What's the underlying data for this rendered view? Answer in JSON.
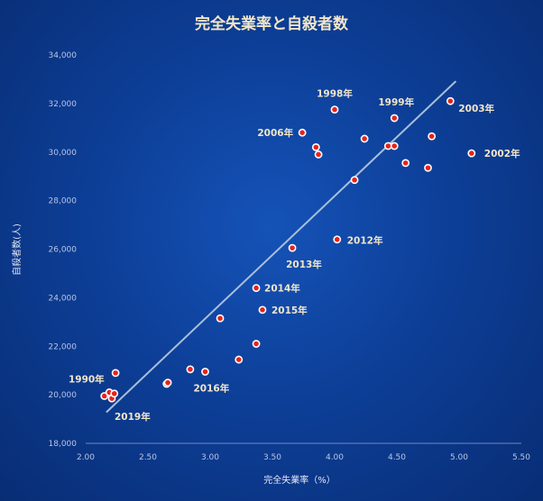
{
  "chart_data": {
    "type": "scatter",
    "title": "完全失業率と自殺者数",
    "xlabel": "完全失業率（%）",
    "ylabel": "自殺者数(人)",
    "xlim": [
      2.0,
      5.5
    ],
    "ylim": [
      18000,
      34000
    ],
    "x_ticks": [
      "2.00",
      "2.50",
      "3.00",
      "3.50",
      "4.00",
      "4.50",
      "5.00",
      "5.50"
    ],
    "y_ticks": [
      "18,000",
      "20,000",
      "22,000",
      "24,000",
      "26,000",
      "28,000",
      "30,000",
      "32,000",
      "34,000"
    ],
    "grid": false,
    "marker_color": "#e8231c",
    "trendline_color": "#a9bfd9",
    "trendline": {
      "x": [
        2.17,
        4.97
      ],
      "y": [
        19300,
        32900
      ]
    },
    "points": [
      {
        "x": 2.15,
        "y": 19950
      },
      {
        "x": 2.19,
        "y": 20100
      },
      {
        "x": 2.21,
        "y": 19850
      },
      {
        "x": 2.23,
        "y": 20050
      },
      {
        "x": 2.24,
        "y": 20900
      },
      {
        "x": 2.65,
        "y": 20450
      },
      {
        "x": 2.66,
        "y": 20500
      },
      {
        "x": 2.84,
        "y": 21050
      },
      {
        "x": 2.96,
        "y": 20950
      },
      {
        "x": 3.08,
        "y": 23150
      },
      {
        "x": 3.23,
        "y": 21450
      },
      {
        "x": 3.37,
        "y": 22100
      },
      {
        "x": 3.37,
        "y": 24400
      },
      {
        "x": 3.42,
        "y": 23500
      },
      {
        "x": 3.66,
        "y": 26050
      },
      {
        "x": 3.74,
        "y": 30800
      },
      {
        "x": 3.85,
        "y": 30200
      },
      {
        "x": 3.87,
        "y": 29900
      },
      {
        "x": 4.0,
        "y": 31750
      },
      {
        "x": 4.02,
        "y": 26400
      },
      {
        "x": 4.16,
        "y": 28850
      },
      {
        "x": 4.24,
        "y": 30550
      },
      {
        "x": 4.43,
        "y": 30250
      },
      {
        "x": 4.48,
        "y": 30250
      },
      {
        "x": 4.48,
        "y": 31400
      },
      {
        "x": 4.57,
        "y": 29550
      },
      {
        "x": 4.75,
        "y": 29350
      },
      {
        "x": 4.78,
        "y": 30650
      },
      {
        "x": 4.93,
        "y": 32100
      },
      {
        "x": 5.1,
        "y": 29950
      }
    ],
    "annotations": [
      {
        "label": "1998年",
        "x": 4.0,
        "y": 31750
      },
      {
        "label": "1999年",
        "x": 4.48,
        "y": 31400
      },
      {
        "label": "2006年",
        "x": 3.74,
        "y": 30800
      },
      {
        "label": "2003年",
        "x": 4.93,
        "y": 32100
      },
      {
        "label": "2002年",
        "x": 5.1,
        "y": 29950
      },
      {
        "label": "2012年",
        "x": 4.02,
        "y": 26400
      },
      {
        "label": "2013年",
        "x": 3.66,
        "y": 26050
      },
      {
        "label": "2014年",
        "x": 3.37,
        "y": 24400
      },
      {
        "label": "2015年",
        "x": 3.42,
        "y": 23500
      },
      {
        "label": "2016年",
        "x": 2.96,
        "y": 20950
      },
      {
        "label": "1990年",
        "x": 2.15,
        "y": 19950
      },
      {
        "label": "2019年",
        "x": 2.21,
        "y": 19850
      }
    ]
  }
}
